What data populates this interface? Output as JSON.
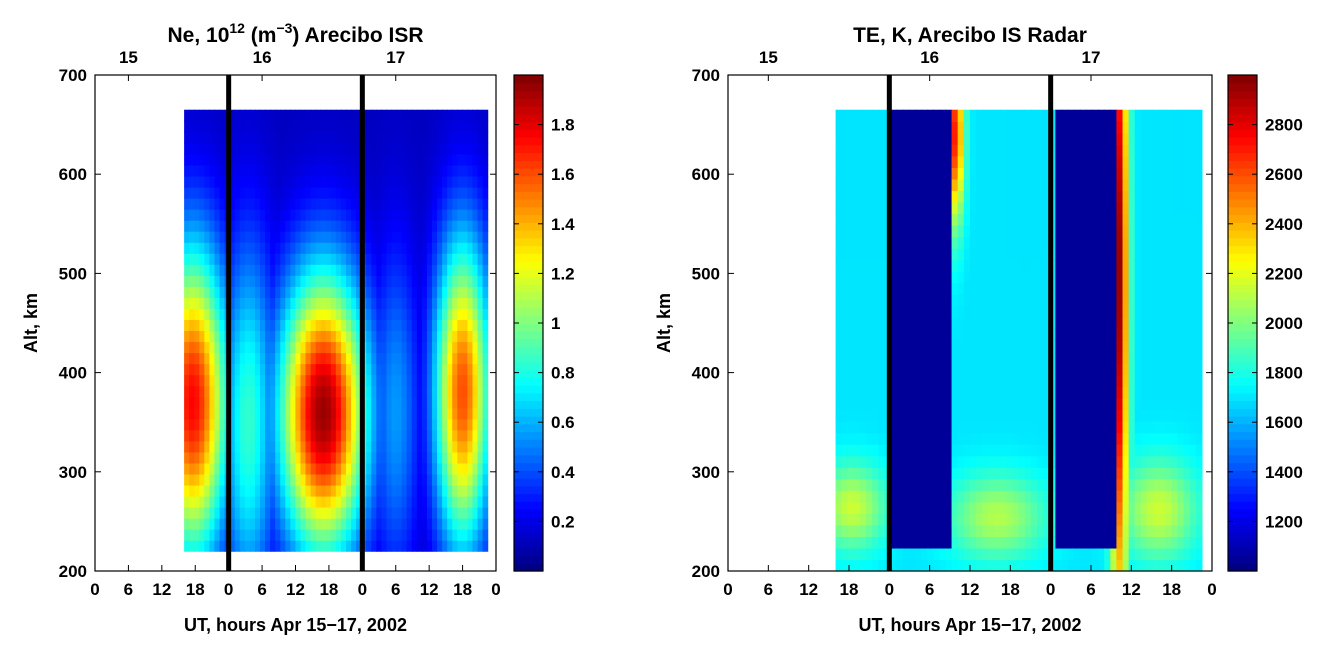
{
  "chart_data": [
    {
      "type": "heatmap",
      "title": "Ne, 10",
      "title_sup": "12",
      "title_unit_open": " (m",
      "title_unit_sup": "−3",
      "title_unit_close": ")  Arecibo ISR",
      "xlabel": "UT, hours  Apr 15−17, 2002",
      "ylabel": "Alt, km",
      "xlim": [
        0,
        72
      ],
      "ylim": [
        200,
        700
      ],
      "x_ticks": [
        0,
        6,
        12,
        18,
        24,
        30,
        36,
        42,
        48,
        54,
        60,
        66,
        72
      ],
      "x_tick_labels": [
        "0",
        "6",
        "12",
        "18",
        "0",
        "6",
        "12",
        "18",
        "0",
        "6",
        "12",
        "18",
        "0"
      ],
      "y_ticks": [
        200,
        300,
        400,
        500,
        600,
        700
      ],
      "y_tick_labels": [
        "200",
        "300",
        "400",
        "500",
        "600",
        "700"
      ],
      "top_ticks": [
        6,
        30,
        54
      ],
      "top_tick_labels": [
        "15",
        "16",
        "17"
      ],
      "day_boundaries": [
        24,
        48
      ],
      "data_extent": {
        "x": [
          16,
          70.5
        ],
        "y": [
          220,
          665
        ]
      },
      "colorbar": {
        "range": [
          0,
          2.0
        ],
        "ticks": [
          0.2,
          0.4,
          0.6,
          0.8,
          1,
          1.2,
          1.4,
          1.6,
          1.8
        ],
        "tick_labels": [
          "0.2",
          "0.4",
          "0.6",
          "0.8",
          "1",
          "1.2",
          "1.4",
          "1.6",
          "1.8"
        ]
      },
      "blobs": [
        {
          "x": 17.5,
          "y": 370,
          "sx": 4.5,
          "sy": 110,
          "v": 1.75
        },
        {
          "x": 41,
          "y": 360,
          "sx": 5.5,
          "sy": 100,
          "v": 1.95
        },
        {
          "x": 66,
          "y": 380,
          "sx": 3.5,
          "sy": 110,
          "v": 1.6
        },
        {
          "x": 27.5,
          "y": 350,
          "sx": 3.5,
          "sy": 130,
          "v": 0.85
        },
        {
          "x": 54,
          "y": 360,
          "sx": 3.0,
          "sy": 120,
          "v": 0.55
        }
      ],
      "background_value": 0.12
    },
    {
      "type": "heatmap",
      "title": "TE, K, Arecibo IS Radar",
      "xlabel": "UT, hours  Apr 15−17, 2002",
      "ylabel": "Alt, km",
      "xlim": [
        0,
        72
      ],
      "ylim": [
        200,
        700
      ],
      "x_ticks": [
        0,
        6,
        12,
        18,
        24,
        30,
        36,
        42,
        48,
        54,
        60,
        66,
        72
      ],
      "x_tick_labels": [
        "0",
        "6",
        "12",
        "18",
        "0",
        "6",
        "12",
        "18",
        "0",
        "6",
        "12",
        "18",
        "0"
      ],
      "y_ticks": [
        200,
        300,
        400,
        500,
        600,
        700
      ],
      "y_tick_labels": [
        "200",
        "300",
        "400",
        "500",
        "600",
        "700"
      ],
      "top_ticks": [
        6,
        30,
        54
      ],
      "top_tick_labels": [
        "15",
        "16",
        "17"
      ],
      "day_boundaries": [
        24,
        48
      ],
      "data_extent": {
        "x": [
          16,
          70.5
        ],
        "y": [
          200,
          665
        ]
      },
      "colorbar": {
        "range": [
          1000,
          3000
        ],
        "ticks": [
          1200,
          1400,
          1600,
          1800,
          2000,
          2200,
          2400,
          2600,
          2800
        ],
        "tick_labels": [
          "1200",
          "1400",
          "1600",
          "1800",
          "2000",
          "2200",
          "2400",
          "2600",
          "2800"
        ]
      },
      "night_blocks": [
        {
          "x": [
            24,
            33.5
          ],
          "y": [
            220,
            665
          ],
          "v": 1050
        },
        {
          "x": [
            48.3,
            57.5
          ],
          "y": [
            220,
            665
          ],
          "v": 1050
        }
      ],
      "blobs": [
        {
          "x": 33.8,
          "y": 640,
          "sx": 0.9,
          "sy": 60,
          "v": 2700
        },
        {
          "x": 58.2,
          "y": 500,
          "sx": 0.9,
          "sy": 260,
          "v": 2950
        },
        {
          "x": 18.5,
          "y": 265,
          "sx": 3.5,
          "sy": 30,
          "v": 2150
        },
        {
          "x": 40,
          "y": 255,
          "sx": 5,
          "sy": 30,
          "v": 2100
        },
        {
          "x": 64,
          "y": 262,
          "sx": 4,
          "sy": 35,
          "v": 2150
        }
      ],
      "background_value": 1700
    }
  ]
}
